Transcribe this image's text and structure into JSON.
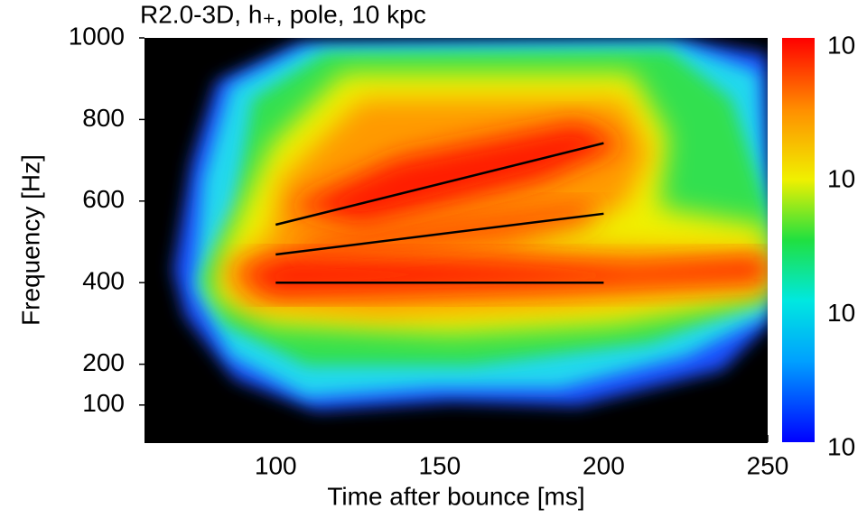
{
  "chart_data": {
    "type": "line",
    "title": "R2.0-3D, h₊, pole, 10 kpc",
    "x_label": "Time after bounce [ms]",
    "y_label": "Frequency [Hz]",
    "xlim": [
      60,
      250
    ],
    "xticks": [
      100,
      150,
      200,
      250
    ],
    "ylim": [
      0,
      1000
    ],
    "yticks": [
      100,
      200,
      400,
      600,
      800,
      1000
    ],
    "colorbar_labels": [
      "10",
      "10",
      "10",
      "10"
    ],
    "series": [
      {
        "color": "#000000",
        "x": [
          100,
          200
        ],
        "values": [
          542,
          742
        ]
      },
      {
        "color": "#000000",
        "x": [
          100,
          200
        ],
        "values": [
          469,
          569
        ]
      },
      {
        "color": "#000000",
        "x": [
          100,
          200
        ],
        "values": [
          400,
          400
        ]
      }
    ]
  }
}
